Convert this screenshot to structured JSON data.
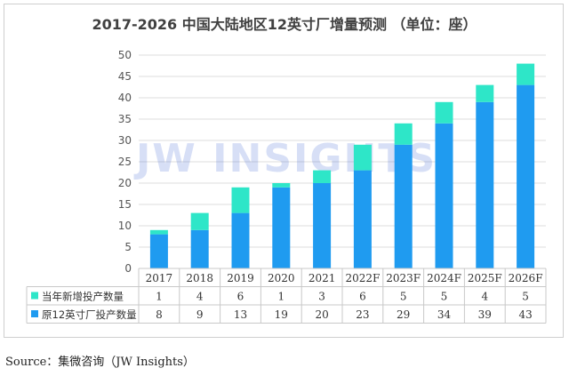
{
  "chart_data": {
    "type": "bar",
    "stacked": true,
    "title": "2017-2026 中国大陆地区12英寸厂增量预测 （单位：座）",
    "categories": [
      "2017",
      "2018",
      "2019",
      "2020",
      "2021",
      "2022F",
      "2023F",
      "2024F",
      "2025F",
      "2026F"
    ],
    "series": [
      {
        "name": "原12英寸厂投产数量",
        "color": "#1f9bf0",
        "values": [
          8,
          9,
          13,
          19,
          20,
          23,
          29,
          34,
          39,
          43
        ]
      },
      {
        "name": "当年新增投产数量",
        "color": "#2ee6c8",
        "values": [
          1,
          4,
          6,
          1,
          3,
          6,
          5,
          5,
          4,
          5
        ]
      }
    ],
    "ylim": [
      0,
      50
    ],
    "yticks": [
      0,
      5,
      10,
      15,
      20,
      25,
      30,
      35,
      40,
      45,
      50
    ],
    "grid": true,
    "legend": "data-table-rows",
    "xlabel": "",
    "ylabel": ""
  },
  "watermark": "JW INSIGHTS",
  "source": "Source：集微咨询（JW Insights）"
}
